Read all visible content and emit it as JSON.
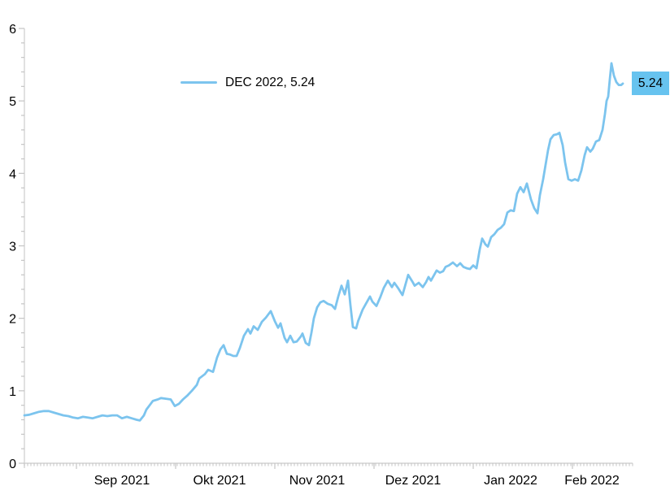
{
  "chart_data": {
    "type": "line",
    "legend": {
      "label": "DEC 2022, 5.24"
    },
    "end_label": {
      "value": "5.24"
    },
    "colors": {
      "line": "#7cc4ee",
      "end_label_bg": "#67c3ef",
      "axis": "#d4d4d4",
      "tick": "#c4c4c4",
      "text": "#000000"
    },
    "y_axis": {
      "min": 0,
      "max": 6,
      "major_step": 1,
      "minor_step": 0.2,
      "tick_labels": [
        "0",
        "1",
        "2",
        "3",
        "4",
        "5",
        "6"
      ]
    },
    "x_axis": {
      "domain": [
        0,
        187
      ],
      "minor_tick_step": 1,
      "boundary_ticks": [
        16,
        46.5,
        77,
        107.5,
        138,
        168.5
      ],
      "tick_labels": [
        {
          "label": "Sep 2021",
          "pos": 30
        },
        {
          "label": "Okt 2021",
          "pos": 60
        },
        {
          "label": "Nov 2021",
          "pos": 90
        },
        {
          "label": "Dez 2021",
          "pos": 119.5
        },
        {
          "label": "Jan 2022",
          "pos": 149.5
        },
        {
          "label": "Feb 2022",
          "pos": 174.5
        }
      ]
    },
    "series": [
      {
        "name": "DEC 2022",
        "last_value": 5.24,
        "points": [
          [
            0,
            0.66
          ],
          [
            1.5,
            0.67
          ],
          [
            3,
            0.69
          ],
          [
            4.5,
            0.71
          ],
          [
            6,
            0.72
          ],
          [
            7.5,
            0.72
          ],
          [
            9,
            0.7
          ],
          [
            10.5,
            0.68
          ],
          [
            12,
            0.66
          ],
          [
            13.5,
            0.65
          ],
          [
            15,
            0.63
          ],
          [
            16.5,
            0.62
          ],
          [
            18,
            0.64
          ],
          [
            19.5,
            0.63
          ],
          [
            21,
            0.62
          ],
          [
            22.5,
            0.64
          ],
          [
            24,
            0.66
          ],
          [
            25.5,
            0.65
          ],
          [
            27,
            0.66
          ],
          [
            28.5,
            0.66
          ],
          [
            30,
            0.62
          ],
          [
            31.5,
            0.64
          ],
          [
            33,
            0.62
          ],
          [
            34.5,
            0.6
          ],
          [
            35.5,
            0.59
          ],
          [
            36.75,
            0.66
          ],
          [
            37.5,
            0.74
          ],
          [
            38.5,
            0.8
          ],
          [
            39.5,
            0.86
          ],
          [
            41,
            0.88
          ],
          [
            42,
            0.9
          ],
          [
            43.5,
            0.89
          ],
          [
            45,
            0.88
          ],
          [
            46.25,
            0.79
          ],
          [
            47.5,
            0.82
          ],
          [
            48.75,
            0.88
          ],
          [
            50,
            0.93
          ],
          [
            51.5,
            1.0
          ],
          [
            53,
            1.08
          ],
          [
            53.75,
            1.17
          ],
          [
            55.5,
            1.23
          ],
          [
            56.5,
            1.29
          ],
          [
            58,
            1.26
          ],
          [
            59.25,
            1.46
          ],
          [
            60.25,
            1.57
          ],
          [
            61.25,
            1.63
          ],
          [
            62.25,
            1.51
          ],
          [
            63.25,
            1.5
          ],
          [
            64.25,
            1.48
          ],
          [
            65.25,
            1.48
          ],
          [
            66.25,
            1.59
          ],
          [
            67.5,
            1.76
          ],
          [
            68.75,
            1.85
          ],
          [
            69.5,
            1.79
          ],
          [
            70.5,
            1.89
          ],
          [
            71.75,
            1.84
          ],
          [
            73,
            1.95
          ],
          [
            74.25,
            2.01
          ],
          [
            75.75,
            2.1
          ],
          [
            77,
            1.96
          ],
          [
            78,
            1.87
          ],
          [
            78.75,
            1.93
          ],
          [
            80,
            1.73
          ],
          [
            80.75,
            1.67
          ],
          [
            81.75,
            1.76
          ],
          [
            82.75,
            1.67
          ],
          [
            83.75,
            1.68
          ],
          [
            85,
            1.75
          ],
          [
            85.5,
            1.79
          ],
          [
            86.5,
            1.66
          ],
          [
            87.5,
            1.63
          ],
          [
            88.25,
            1.8
          ],
          [
            89,
            2.0
          ],
          [
            90,
            2.15
          ],
          [
            91,
            2.22
          ],
          [
            92,
            2.24
          ],
          [
            93.25,
            2.2
          ],
          [
            94.5,
            2.18
          ],
          [
            95.5,
            2.13
          ],
          [
            96.5,
            2.3
          ],
          [
            97.5,
            2.45
          ],
          [
            98.5,
            2.33
          ],
          [
            99.5,
            2.52
          ],
          [
            100.25,
            2.18
          ],
          [
            101,
            1.88
          ],
          [
            102,
            1.86
          ],
          [
            102.6,
            1.96
          ],
          [
            104,
            2.12
          ],
          [
            105,
            2.2
          ],
          [
            106.25,
            2.3
          ],
          [
            107,
            2.23
          ],
          [
            108.25,
            2.17
          ],
          [
            109.5,
            2.3
          ],
          [
            110.5,
            2.42
          ],
          [
            111.75,
            2.52
          ],
          [
            113,
            2.43
          ],
          [
            113.75,
            2.49
          ],
          [
            115,
            2.41
          ],
          [
            116.25,
            2.32
          ],
          [
            117.25,
            2.48
          ],
          [
            118,
            2.6
          ],
          [
            119.25,
            2.51
          ],
          [
            120,
            2.45
          ],
          [
            121.25,
            2.49
          ],
          [
            122.5,
            2.43
          ],
          [
            123.5,
            2.5
          ],
          [
            124.25,
            2.57
          ],
          [
            125,
            2.52
          ],
          [
            126,
            2.6
          ],
          [
            126.75,
            2.66
          ],
          [
            127.75,
            2.63
          ],
          [
            128.75,
            2.65
          ],
          [
            129.5,
            2.71
          ],
          [
            130.5,
            2.73
          ],
          [
            131.75,
            2.77
          ],
          [
            133,
            2.72
          ],
          [
            134,
            2.76
          ],
          [
            135,
            2.71
          ],
          [
            136,
            2.69
          ],
          [
            137,
            2.68
          ],
          [
            138,
            2.73
          ],
          [
            139,
            2.69
          ],
          [
            140,
            2.95
          ],
          [
            140.75,
            3.1
          ],
          [
            141.75,
            3.02
          ],
          [
            142.5,
            2.99
          ],
          [
            143.5,
            3.12
          ],
          [
            144.5,
            3.16
          ],
          [
            145.5,
            3.22
          ],
          [
            146.5,
            3.25
          ],
          [
            147.5,
            3.3
          ],
          [
            148.5,
            3.46
          ],
          [
            149.5,
            3.49
          ],
          [
            150.5,
            3.48
          ],
          [
            151.5,
            3.72
          ],
          [
            152.5,
            3.81
          ],
          [
            153.5,
            3.74
          ],
          [
            154.5,
            3.86
          ],
          [
            155.75,
            3.64
          ],
          [
            156.75,
            3.52
          ],
          [
            157.75,
            3.45
          ],
          [
            158.5,
            3.7
          ],
          [
            159.5,
            3.92
          ],
          [
            160.25,
            4.12
          ],
          [
            161,
            4.32
          ],
          [
            161.75,
            4.47
          ],
          [
            162.75,
            4.53
          ],
          [
            163.75,
            4.54
          ],
          [
            164.5,
            4.56
          ],
          [
            165.5,
            4.39
          ],
          [
            166.25,
            4.15
          ],
          [
            167.25,
            3.92
          ],
          [
            168.25,
            3.9
          ],
          [
            169.25,
            3.92
          ],
          [
            170.25,
            3.9
          ],
          [
            171.25,
            4.04
          ],
          [
            172.25,
            4.25
          ],
          [
            173,
            4.36
          ],
          [
            174,
            4.3
          ],
          [
            174.75,
            4.34
          ],
          [
            175.75,
            4.44
          ],
          [
            176.75,
            4.46
          ],
          [
            177.75,
            4.6
          ],
          [
            178.5,
            4.82
          ],
          [
            179,
            5.0
          ],
          [
            179.5,
            5.06
          ],
          [
            180,
            5.3
          ],
          [
            180.5,
            5.52
          ],
          [
            181.25,
            5.35
          ],
          [
            182,
            5.26
          ],
          [
            182.75,
            5.22
          ],
          [
            183.5,
            5.22
          ],
          [
            184,
            5.24
          ]
        ]
      }
    ]
  }
}
